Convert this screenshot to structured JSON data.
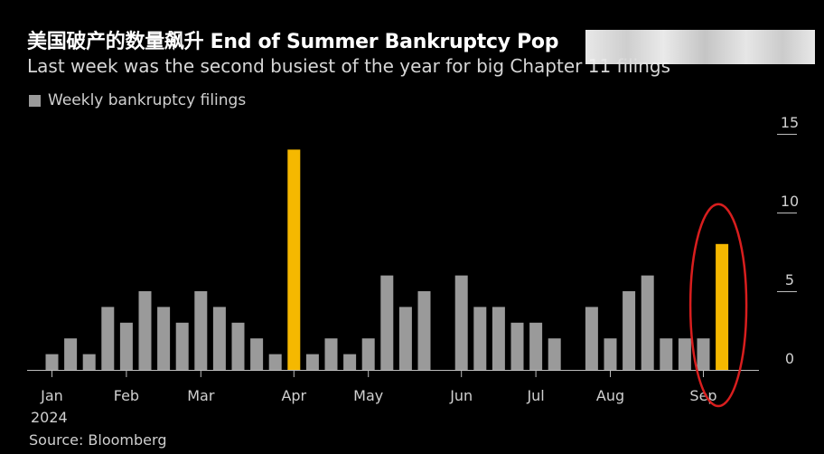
{
  "header": {
    "title": "美国破产的数量飙升 End of Summer Bankruptcy Pop",
    "subtitle": "Last week was the second busiest of the year for big Chapter 11 filings"
  },
  "legend": {
    "label": "Weekly bankruptcy filings"
  },
  "source": "Source: Bloomberg",
  "colors": {
    "background": "#000000",
    "bar_default": "#9a9a9a",
    "bar_highlight": "#f5b800",
    "annotation_circle": "#d81e1e"
  },
  "chart_data": {
    "type": "bar",
    "title": "End of Summer Bankruptcy Pop",
    "series": [
      {
        "name": "Weekly bankruptcy filings",
        "values": [
          1,
          2,
          1,
          4,
          3,
          5,
          4,
          3,
          5,
          4,
          3,
          2,
          1,
          14,
          1,
          2,
          1,
          2,
          6,
          4,
          5,
          0,
          6,
          4,
          4,
          3,
          3,
          2,
          0,
          4,
          2,
          5,
          6,
          2,
          2,
          2,
          8
        ]
      }
    ],
    "highlighted_indices": [
      13,
      36
    ],
    "annotation": {
      "type": "circle",
      "target_index": 36
    },
    "x_ticks": [
      {
        "label": "Jan",
        "index": 0
      },
      {
        "label": "Feb",
        "index": 4
      },
      {
        "label": "Mar",
        "index": 8
      },
      {
        "label": "Apr",
        "index": 13
      },
      {
        "label": "May",
        "index": 17
      },
      {
        "label": "Jun",
        "index": 22
      },
      {
        "label": "Jul",
        "index": 26
      },
      {
        "label": "Aug",
        "index": 30
      },
      {
        "label": "Sep",
        "index": 35
      }
    ],
    "x_year_label": "2024",
    "y_ticks": [
      0,
      5,
      10,
      15
    ],
    "ylim": [
      0,
      15
    ],
    "y_axis_position": "right",
    "grid": false
  }
}
